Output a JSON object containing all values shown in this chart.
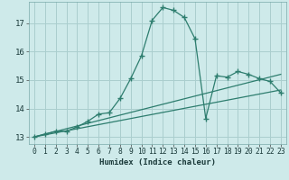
{
  "title": "",
  "xlabel": "Humidex (Indice chaleur)",
  "bg_color": "#ceeaea",
  "grid_color": "#aacece",
  "line_color": "#2d7d6e",
  "xlim": [
    -0.5,
    23.5
  ],
  "ylim": [
    12.75,
    17.75
  ],
  "xticks": [
    0,
    1,
    2,
    3,
    4,
    5,
    6,
    7,
    8,
    9,
    10,
    11,
    12,
    13,
    14,
    15,
    16,
    17,
    18,
    19,
    20,
    21,
    22,
    23
  ],
  "yticks": [
    13,
    14,
    15,
    16,
    17
  ],
  "line1_x": [
    0,
    1,
    2,
    3,
    4,
    5,
    6,
    7,
    8,
    9,
    10,
    11,
    12,
    13,
    14,
    15,
    16,
    17,
    18,
    19,
    20,
    21,
    22,
    23
  ],
  "line1_y": [
    13.0,
    13.1,
    13.2,
    13.2,
    13.35,
    13.55,
    13.8,
    13.85,
    14.35,
    15.05,
    15.85,
    17.1,
    17.55,
    17.45,
    17.2,
    16.45,
    13.65,
    15.15,
    15.1,
    15.3,
    15.2,
    15.05,
    14.95,
    14.55
  ],
  "line2_x": [
    0,
    23
  ],
  "line2_y": [
    13.0,
    14.65
  ],
  "line3_x": [
    0,
    23
  ],
  "line3_y": [
    13.0,
    15.2
  ]
}
